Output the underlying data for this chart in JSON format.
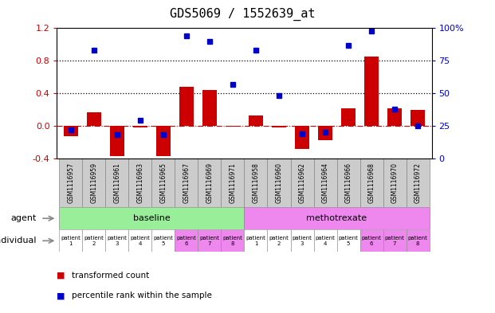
{
  "title": "GDS5069 / 1552639_at",
  "samples": [
    "GSM1116957",
    "GSM1116959",
    "GSM1116961",
    "GSM1116963",
    "GSM1116965",
    "GSM1116967",
    "GSM1116969",
    "GSM1116971",
    "GSM1116958",
    "GSM1116960",
    "GSM1116962",
    "GSM1116964",
    "GSM1116966",
    "GSM1116968",
    "GSM1116970",
    "GSM1116972"
  ],
  "transformed_count": [
    -0.13,
    0.17,
    -0.37,
    -0.02,
    -0.37,
    0.48,
    0.44,
    -0.01,
    0.13,
    -0.02,
    -0.28,
    -0.18,
    0.22,
    0.85,
    0.22,
    0.2
  ],
  "percentile_rank": [
    22,
    83,
    18,
    29,
    18,
    94,
    90,
    57,
    83,
    48,
    19,
    20,
    87,
    98,
    38,
    25
  ],
  "bar_color": "#cc0000",
  "dot_color": "#0000cc",
  "ylim_left": [
    -0.4,
    1.2
  ],
  "ylim_right": [
    0,
    100
  ],
  "yticks_left": [
    -0.4,
    0.0,
    0.4,
    0.8,
    1.2
  ],
  "yticks_right": [
    0,
    25,
    50,
    75,
    100
  ],
  "hlines": [
    0.4,
    0.8
  ],
  "zero_line_y": 0.0,
  "agent_labels": [
    "baseline",
    "methotrexate"
  ],
  "agent_colors": [
    "#99ee99",
    "#ee88ee"
  ],
  "individual_colors": [
    "#ffffff",
    "#ffffff",
    "#ffffff",
    "#ffffff",
    "#ffffff",
    "#ee88ee",
    "#ee88ee",
    "#ee88ee",
    "#ffffff",
    "#ffffff",
    "#ffffff",
    "#ffffff",
    "#ffffff",
    "#ee88ee",
    "#ee88ee",
    "#ee88ee"
  ],
  "individual_labels": [
    "patient\n1",
    "patient\n2",
    "patient\n3",
    "patient\n4",
    "patient\n5",
    "patient\n6",
    "patient\n7",
    "patient\n8",
    "patient\n1",
    "patient\n2",
    "patient\n3",
    "patient\n4",
    "patient\n5",
    "patient\n6",
    "patient\n7",
    "patient\n8"
  ],
  "legend_bar_label": "transformed count",
  "legend_dot_label": "percentile rank within the sample",
  "sample_bg_color": "#cccccc",
  "title_fontsize": 11,
  "tick_fontsize": 7,
  "label_fontsize": 8
}
